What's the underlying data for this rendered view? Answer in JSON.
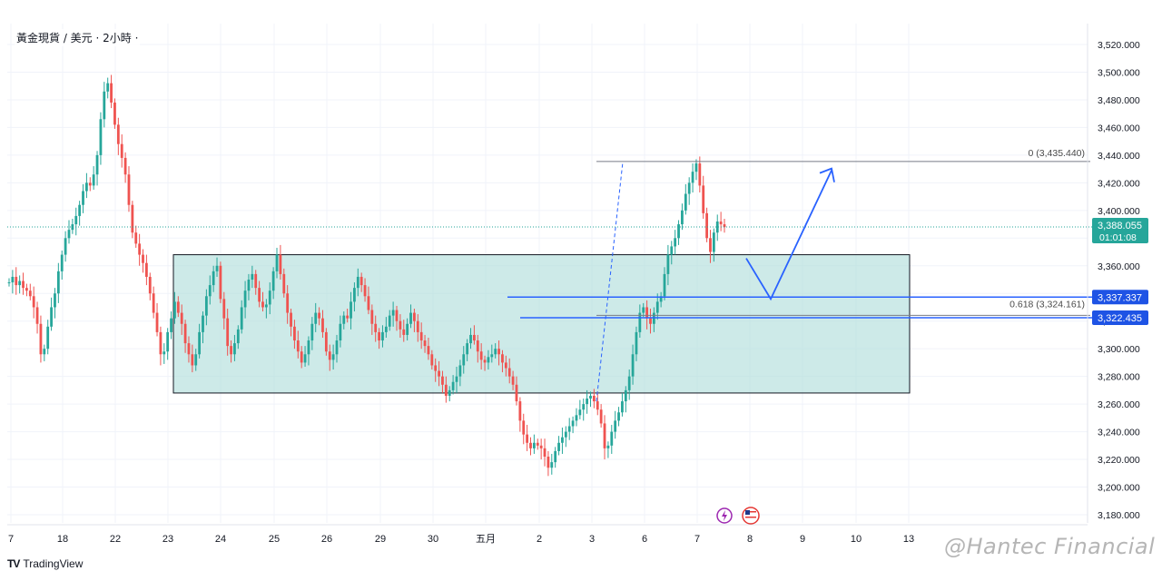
{
  "header": {
    "symbol_line": "黃金現貨 / 美元 · 2小時 ·"
  },
  "footer": {
    "brand_mark": "TV",
    "brand_name": "TradingView",
    "watermark": "@Hantec Financial"
  },
  "colors": {
    "up": "#26a69a",
    "down": "#ef5350",
    "box_fill": "#b2dfdb",
    "fib_line": "#787b86",
    "level_line": "#2962ff",
    "projection": "#2962ff",
    "price_tag": "#26a69a",
    "level_tag": "#1e53e5"
  },
  "chart_data": {
    "type": "candlestick",
    "title": "",
    "ylim": [
      3175,
      3530
    ],
    "y_ticks": [
      "3,180.000",
      "3,200.000",
      "3,220.000",
      "3,240.000",
      "3,260.000",
      "3,280.000",
      "3,300.000",
      "3,320.000",
      "3,340.000",
      "3,360.000",
      "3,380.000",
      "3,400.000",
      "3,420.000",
      "3,440.000",
      "3,460.000",
      "3,480.000",
      "3,500.000",
      "3,520.000"
    ],
    "y_tick_values": [
      3180,
      3200,
      3220,
      3240,
      3260,
      3280,
      3300,
      3320,
      3340,
      3360,
      3380,
      3400,
      3420,
      3440,
      3460,
      3480,
      3500,
      3520
    ],
    "x_ticks": [
      "7",
      "18",
      "22",
      "23",
      "24",
      "25",
      "26",
      "29",
      "30",
      "五月",
      "2",
      "3",
      "6",
      "7",
      "8",
      "9",
      "10",
      "13"
    ],
    "current_price": {
      "price": 3388.055,
      "label": "3,388.055",
      "countdown": "01:01:08"
    },
    "horizontal_levels": [
      {
        "price": 3337.337,
        "label": "3,337.337"
      },
      {
        "price": 3322.435,
        "label": "3,322.435"
      }
    ],
    "fibonacci": [
      {
        "ratio": "0",
        "price": 3435.44,
        "label": "0 (3,435.440)"
      },
      {
        "ratio": "0.618",
        "price": 3324.161,
        "label": "0.618 (3,324.161)"
      }
    ],
    "range_box": {
      "top": 3368,
      "bottom": 3268
    },
    "projection_path": [
      3368,
      3336,
      3429
    ],
    "candle_seeds": [
      3348,
      3352,
      3346,
      3349,
      3344,
      3342,
      3338,
      3330,
      3318,
      3296,
      3300,
      3316,
      3330,
      3340,
      3356,
      3368,
      3380,
      3386,
      3390,
      3396,
      3404,
      3414,
      3420,
      3418,
      3426,
      3440,
      3466,
      3486,
      3492,
      3478,
      3462,
      3448,
      3438,
      3426,
      3404,
      3384,
      3376,
      3368,
      3362,
      3352,
      3340,
      3326,
      3312,
      3296,
      3298,
      3312,
      3322,
      3334,
      3326,
      3318,
      3304,
      3296,
      3288,
      3296,
      3312,
      3324,
      3338,
      3346,
      3356,
      3360,
      3336,
      3322,
      3302,
      3296,
      3304,
      3314,
      3330,
      3342,
      3350,
      3354,
      3344,
      3334,
      3330,
      3332,
      3342,
      3356,
      3368,
      3354,
      3340,
      3326,
      3316,
      3306,
      3298,
      3290,
      3296,
      3306,
      3318,
      3326,
      3322,
      3312,
      3298,
      3292,
      3296,
      3306,
      3318,
      3324,
      3322,
      3334,
      3344,
      3352,
      3346,
      3338,
      3328,
      3318,
      3312,
      3306,
      3312,
      3316,
      3324,
      3328,
      3320,
      3314,
      3310,
      3318,
      3326,
      3320,
      3312,
      3306,
      3302,
      3296,
      3288,
      3284,
      3280,
      3274,
      3266,
      3270,
      3276,
      3280,
      3288,
      3296,
      3304,
      3310,
      3306,
      3298,
      3292,
      3290,
      3294,
      3296,
      3300,
      3296,
      3290,
      3286,
      3280,
      3274,
      3262,
      3248,
      3238,
      3232,
      3228,
      3232,
      3230,
      3228,
      3222,
      3214,
      3218,
      3226,
      3232,
      3236,
      3240,
      3244,
      3248,
      3252,
      3256,
      3260,
      3264,
      3266,
      3262,
      3256,
      3246,
      3228,
      3230,
      3240,
      3248,
      3254,
      3262,
      3270,
      3280,
      3296,
      3312,
      3326,
      3330,
      3322,
      3318,
      3326,
      3334,
      3338,
      3354,
      3368,
      3374,
      3380,
      3390,
      3400,
      3412,
      3420,
      3428,
      3434,
      3418,
      3398,
      3380,
      3370,
      3384,
      3392,
      3390,
      3388
    ]
  }
}
